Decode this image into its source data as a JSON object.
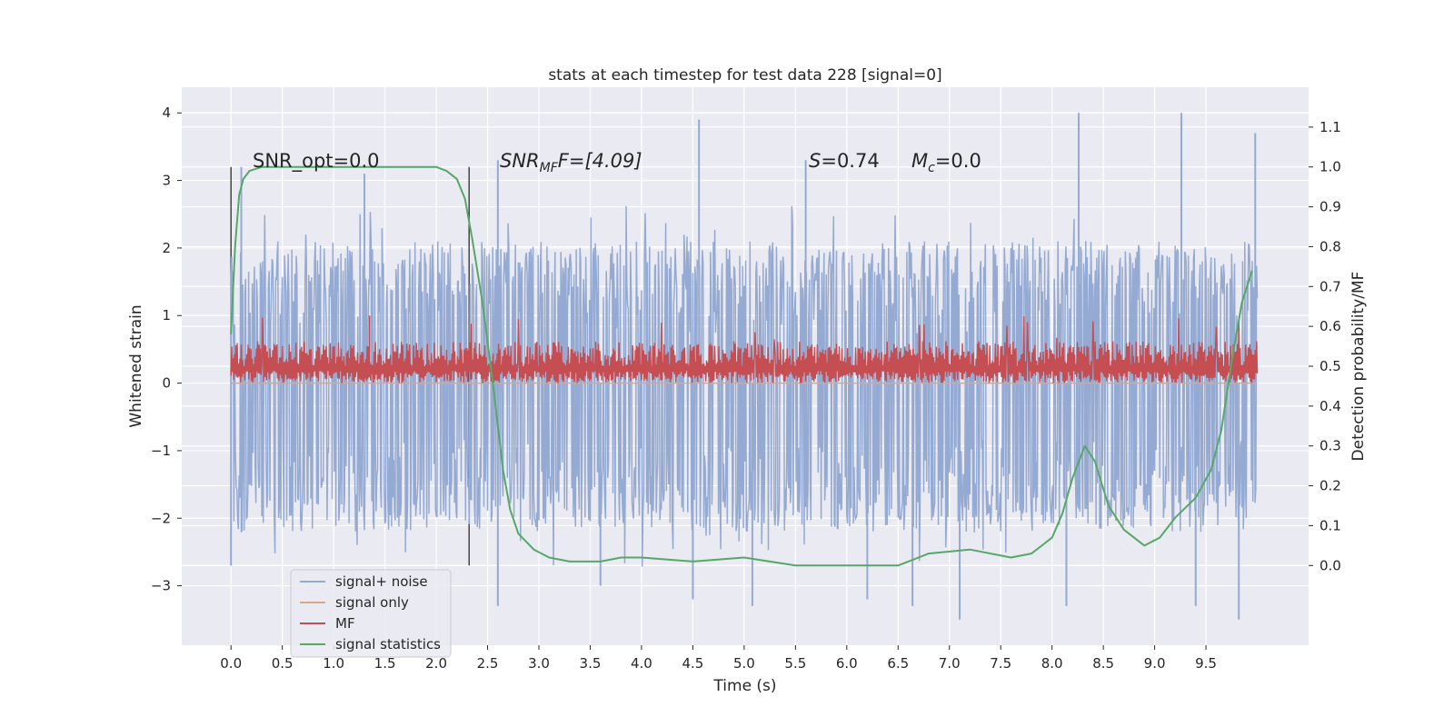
{
  "chart_data": {
    "type": "line",
    "title": "stats at each timestep for test data 228 [signal=0]",
    "xlabel": "Time (s)",
    "ylabel": "Whitened strain",
    "y2label": "Detection probability/MF",
    "xlim": [
      -0.48,
      10.5
    ],
    "ylim": [
      -3.88,
      4.38
    ],
    "y2lim": [
      -0.2,
      1.2
    ],
    "x_ticks": [
      "0.0",
      "0.5",
      "1.0",
      "1.5",
      "2.0",
      "2.5",
      "3.0",
      "3.5",
      "4.0",
      "4.5",
      "5.0",
      "5.5",
      "6.0",
      "6.5",
      "7.0",
      "7.5",
      "8.0",
      "8.5",
      "9.0",
      "9.5"
    ],
    "y_ticks": [
      "4",
      "3",
      "2",
      "1",
      "0",
      "−1",
      "−2",
      "−3"
    ],
    "y2_ticks": [
      "1.1",
      "1.0",
      "0.9",
      "0.8",
      "0.7",
      "0.6",
      "0.5",
      "0.4",
      "0.3",
      "0.2",
      "0.1",
      "0.0"
    ],
    "grid": true,
    "legend_placement": "lower-left",
    "annotations": {
      "snr_opt": "SNR_opt=0.0",
      "snr_mf_base": "SNR",
      "snr_mf_sub": "MF",
      "snr_mf_rest": "F=[4.09]",
      "s_sym": "S",
      "s_val": "=0.74",
      "mc_sym": "M",
      "mc_sub": "c",
      "mc_val": "=0.0"
    },
    "vertical_markers": [
      0.0,
      2.32
    ],
    "series": [
      {
        "name": "signal+ noise",
        "color": "#95aad2",
        "axis": "left",
        "x_range": [
          0.0,
          10.0
        ],
        "envelope_upper": 2.1,
        "envelope_lower": -2.2,
        "peaks": [
          [
            0.0,
            1.6
          ],
          [
            0.1,
            3.2
          ],
          [
            1.3,
            3.1
          ],
          [
            2.6,
            3.3
          ],
          [
            4.56,
            3.9
          ],
          [
            5.6,
            3.3
          ],
          [
            8.26,
            4.0
          ],
          [
            9.26,
            4.0
          ],
          [
            9.98,
            3.7
          ]
        ],
        "troughs": [
          [
            0.0,
            -2.7
          ],
          [
            2.6,
            -3.3
          ],
          [
            3.6,
            -3.0
          ],
          [
            4.5,
            -3.2
          ],
          [
            5.08,
            -3.3
          ],
          [
            6.2,
            -3.2
          ],
          [
            6.64,
            -3.3
          ],
          [
            7.1,
            -3.5
          ],
          [
            8.14,
            -3.3
          ],
          [
            9.4,
            -3.3
          ],
          [
            9.82,
            -3.5
          ]
        ]
      },
      {
        "name": "signal only",
        "color": "#e6a37f",
        "axis": "left",
        "x_range": [
          0.0,
          10.0
        ],
        "values_note": "flat at 0"
      },
      {
        "name": "MF",
        "color": "#c44e52",
        "axis": "left",
        "x_range": [
          0.0,
          10.0
        ],
        "band_lower": 0.0,
        "band_upper": 0.62,
        "max_value": 1.0
      },
      {
        "name": "signal statistics",
        "color": "#55a868",
        "axis": "right",
        "x": [
          0.0,
          0.04,
          0.08,
          0.12,
          0.18,
          0.3,
          0.5,
          1.0,
          1.5,
          2.0,
          2.1,
          2.2,
          2.28,
          2.35,
          2.45,
          2.55,
          2.65,
          2.72,
          2.8,
          2.95,
          3.1,
          3.3,
          3.6,
          3.8,
          4.0,
          4.5,
          5.0,
          5.5,
          6.0,
          6.5,
          6.8,
          7.2,
          7.6,
          7.8,
          8.0,
          8.1,
          8.2,
          8.32,
          8.42,
          8.55,
          8.7,
          8.9,
          9.05,
          9.2,
          9.4,
          9.55,
          9.65,
          9.75,
          9.85,
          9.95
        ],
        "values": [
          0.58,
          0.8,
          0.93,
          0.97,
          0.99,
          1.0,
          1.0,
          1.0,
          1.0,
          1.0,
          0.99,
          0.97,
          0.92,
          0.82,
          0.66,
          0.46,
          0.24,
          0.14,
          0.08,
          0.04,
          0.02,
          0.01,
          0.01,
          0.02,
          0.02,
          0.01,
          0.02,
          0.0,
          0.0,
          0.0,
          0.03,
          0.04,
          0.02,
          0.03,
          0.07,
          0.13,
          0.22,
          0.3,
          0.26,
          0.15,
          0.09,
          0.05,
          0.07,
          0.12,
          0.17,
          0.24,
          0.34,
          0.51,
          0.66,
          0.74
        ]
      }
    ]
  }
}
